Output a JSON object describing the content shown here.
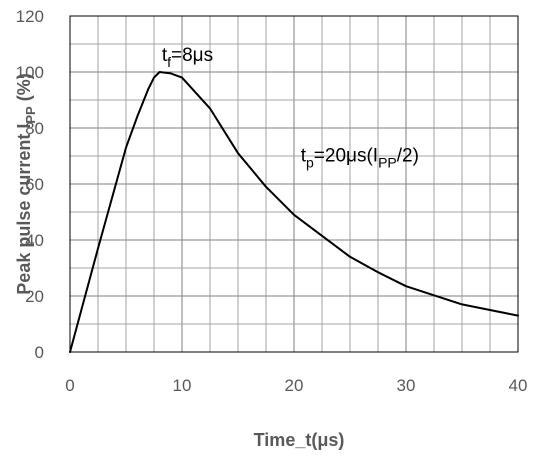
{
  "chart_data": {
    "type": "line",
    "xlabel": "Time_t(μs)",
    "ylabel": {
      "base": "Peak pulse current I",
      "sub": "PP",
      "tail": " (%)"
    },
    "xlim": [
      0,
      40
    ],
    "ylim": [
      0,
      120
    ],
    "x_ticks": [
      0,
      10,
      20,
      30,
      40
    ],
    "y_ticks": [
      0,
      20,
      40,
      60,
      80,
      100,
      120
    ],
    "x_minor_step": 2.5,
    "y_minor_step": 10,
    "grid": true,
    "line_color": "#000000",
    "series": [
      {
        "x": [
          0,
          2.5,
          5,
          6,
          7,
          7.5,
          8,
          9,
          10,
          12.5,
          15,
          17.5,
          20,
          25,
          27.5,
          30,
          35,
          40
        ],
        "y": [
          0,
          37,
          73,
          84,
          94,
          98,
          100,
          99.5,
          98,
          87,
          71,
          59,
          49,
          34,
          28.5,
          23.5,
          17,
          13
        ]
      }
    ],
    "annotations": [
      {
        "id": "tf",
        "x": 8.2,
        "y": 104,
        "parts": [
          {
            "t": "t",
            "s": "normal"
          },
          {
            "t": "f",
            "s": "sub"
          },
          {
            "t": "=8μs",
            "s": "normal"
          }
        ]
      },
      {
        "id": "tp",
        "x": 20.6,
        "y": 68,
        "parts": [
          {
            "t": "t",
            "s": "normal"
          },
          {
            "t": "p",
            "s": "sub"
          },
          {
            "t": "=20μs(I",
            "s": "normal"
          },
          {
            "t": "PP",
            "s": "sub"
          },
          {
            "t": "/2)",
            "s": "normal"
          }
        ]
      }
    ]
  }
}
